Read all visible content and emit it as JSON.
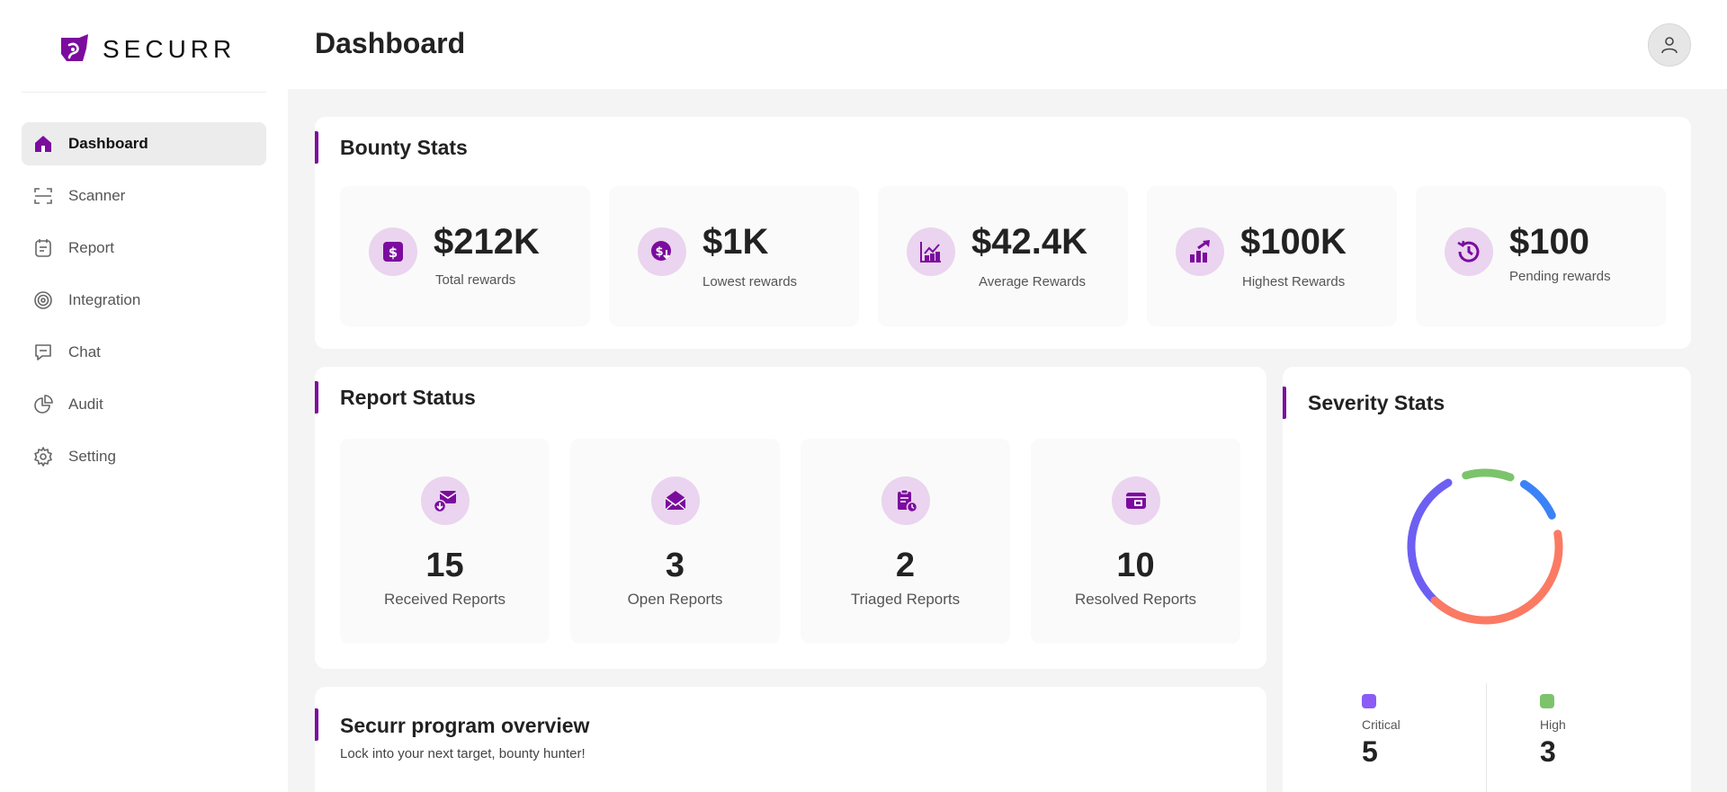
{
  "brand": {
    "name": "SECURR",
    "accent": "#7b0c9e"
  },
  "sidebar": {
    "items": [
      {
        "label": "Dashboard",
        "icon": "home-icon",
        "active": true
      },
      {
        "label": "Scanner",
        "icon": "scan-icon"
      },
      {
        "label": "Report",
        "icon": "report-icon"
      },
      {
        "label": "Integration",
        "icon": "integration-icon"
      },
      {
        "label": "Chat",
        "icon": "chat-icon"
      },
      {
        "label": "Audit",
        "icon": "audit-icon"
      },
      {
        "label": "Setting",
        "icon": "gear-icon"
      }
    ]
  },
  "header": {
    "title": "Dashboard",
    "avatar_icon": "user-icon"
  },
  "bounty_stats": {
    "title": "Bounty Stats",
    "items": [
      {
        "value": "$212K",
        "label": "Total rewards",
        "icon": "dollar-icon"
      },
      {
        "value": "$1K",
        "label": "Lowest rewards",
        "icon": "dollar-down-icon"
      },
      {
        "value": "$42.4K",
        "label": "Average Rewards",
        "icon": "chart-icon"
      },
      {
        "value": "$100K",
        "label": "Highest Rewards",
        "icon": "trend-up-icon"
      },
      {
        "value": "$100",
        "label": "Pending rewards",
        "icon": "history-icon"
      }
    ]
  },
  "report_status": {
    "title": "Report Status",
    "items": [
      {
        "value": "15",
        "label": "Received Reports",
        "icon": "mail-received-icon"
      },
      {
        "value": "3",
        "label": "Open Reports",
        "icon": "mail-open-icon"
      },
      {
        "value": "2",
        "label": "Triaged Reports",
        "icon": "clipboard-icon"
      },
      {
        "value": "10",
        "label": "Resolved Reports",
        "icon": "resolved-icon"
      }
    ]
  },
  "overview": {
    "title": "Securr program overview",
    "subtitle": "Lock into your next target, bounty hunter!"
  },
  "severity_stats": {
    "title": "Severity Stats",
    "legend": [
      {
        "label": "Critical",
        "value": "5",
        "color": "#8b5cf6"
      },
      {
        "label": "High",
        "value": "3",
        "color": "#7cc36b"
      }
    ],
    "ring_colors": [
      "#6d5ff2",
      "#7cc36b",
      "#3b82f6",
      "#fb7a63"
    ]
  }
}
